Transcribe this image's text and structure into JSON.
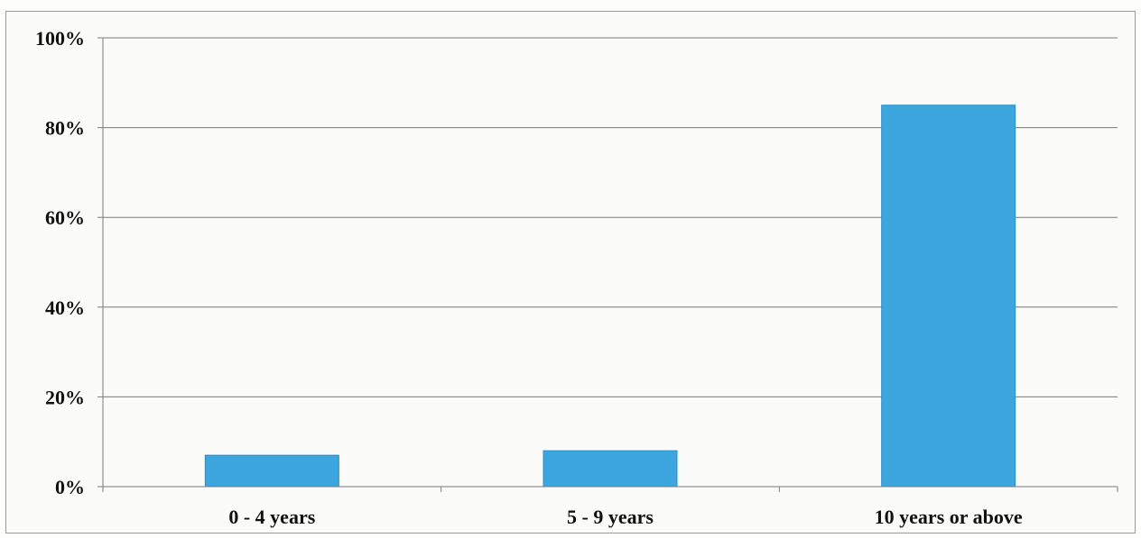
{
  "chart_data": {
    "type": "bar",
    "title": "",
    "xlabel": "",
    "ylabel": "",
    "categories": [
      "0 - 4 years",
      "5 - 9 years",
      "10 years or above"
    ],
    "values": [
      7,
      8,
      85
    ],
    "ylim": [
      0,
      100
    ],
    "yticks": [
      0,
      20,
      40,
      60,
      80,
      100
    ],
    "ytick_labels": [
      "0%",
      "20%",
      "40%",
      "60%",
      "80%",
      "100%"
    ],
    "grid": true,
    "legend": "none",
    "bar_color": "#3ea6df",
    "bar_edge_color": "#2a8fc8"
  }
}
